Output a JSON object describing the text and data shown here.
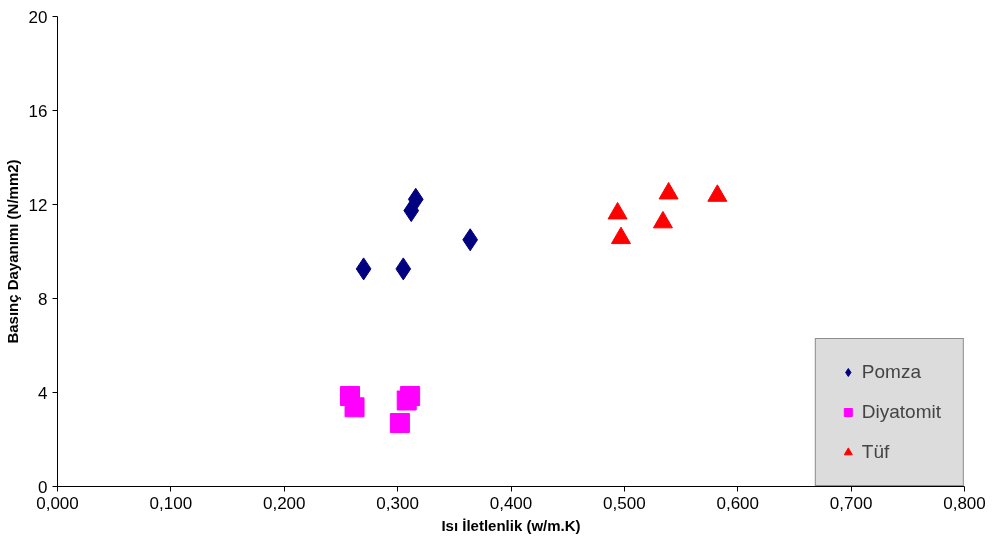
{
  "chart_data": {
    "type": "scatter",
    "xlabel": "Isı İletlenlik (w/m.K)",
    "ylabel": "Basınç Dayanımı (N/mm2)",
    "xlim": [
      0,
      0.8
    ],
    "ylim": [
      0,
      20
    ],
    "xticks": [
      {
        "value": 0,
        "label": "0,000"
      },
      {
        "value": 0.1,
        "label": "0,100"
      },
      {
        "value": 0.2,
        "label": "0,200"
      },
      {
        "value": 0.3,
        "label": "0,300"
      },
      {
        "value": 0.4,
        "label": "0,400"
      },
      {
        "value": 0.5,
        "label": "0,500"
      },
      {
        "value": 0.6,
        "label": "0,600"
      },
      {
        "value": 0.7,
        "label": "0,700"
      },
      {
        "value": 0.8,
        "label": "0,800"
      }
    ],
    "yticks": [
      0,
      4,
      8,
      12,
      16,
      20
    ],
    "grid": false,
    "legend": "bottom right",
    "series": [
      {
        "name": "Pomza",
        "color": "#000080",
        "marker": "diamond",
        "x": [
          0.27,
          0.305,
          0.312,
          0.316,
          0.364
        ],
        "values": [
          9.26,
          9.26,
          11.74,
          12.22,
          10.5
        ]
      },
      {
        "name": "Diyatomit",
        "color": "#ff00ff",
        "marker": "square",
        "x": [
          0.258,
          0.262,
          0.308,
          0.311,
          0.302
        ],
        "values": [
          3.85,
          3.37,
          3.66,
          3.85,
          2.7
        ]
      },
      {
        "name": "Tüf",
        "color": "#ff0000",
        "marker": "triangle",
        "x": [
          0.494,
          0.497,
          0.539,
          0.534,
          0.582
        ],
        "values": [
          11.62,
          10.57,
          12.47,
          11.24,
          12.37
        ]
      }
    ]
  }
}
